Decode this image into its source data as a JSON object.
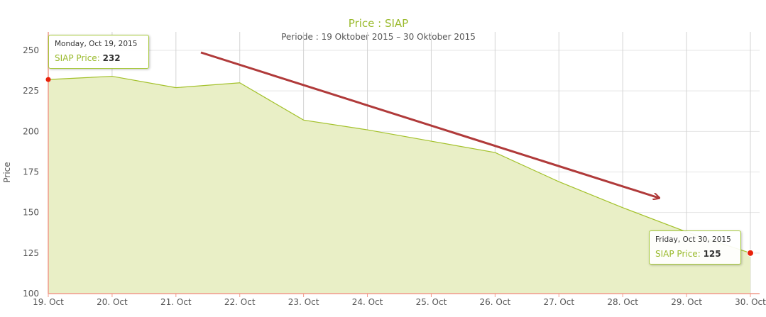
{
  "chart_data": {
    "type": "area",
    "title": "Price : SIAP",
    "subtitle": "Periode : 19 Oktober 2015 – 30 Oktober 2015",
    "ylabel": "Price",
    "xlabel": "",
    "categories": [
      "19. Oct",
      "20. Oct",
      "21. Oct",
      "22. Oct",
      "23. Oct",
      "24. Oct",
      "25. Oct",
      "26. Oct",
      "27. Oct",
      "28. Oct",
      "29. Oct",
      "30. Oct"
    ],
    "series": [
      {
        "name": "SIAP Price",
        "values": [
          232,
          234,
          227,
          230,
          207,
          201,
          194,
          187,
          169,
          153,
          138,
          125
        ]
      }
    ],
    "yticks": [
      100,
      125,
      150,
      175,
      200,
      225,
      250
    ],
    "ylim": [
      100,
      250
    ],
    "grid": true,
    "colors": {
      "fill": "#e9efc6",
      "line": "#a3c12a",
      "axis": "#f09a8a",
      "arrow": "#b03a3a",
      "marker": "#e8210b"
    }
  },
  "tooltips": [
    {
      "date": "Monday, Oct 19, 2015",
      "label": "SIAP Price",
      "value": "232"
    },
    {
      "date": "Friday, Oct 30, 2015",
      "label": "SIAP Price",
      "value": "125"
    }
  ]
}
